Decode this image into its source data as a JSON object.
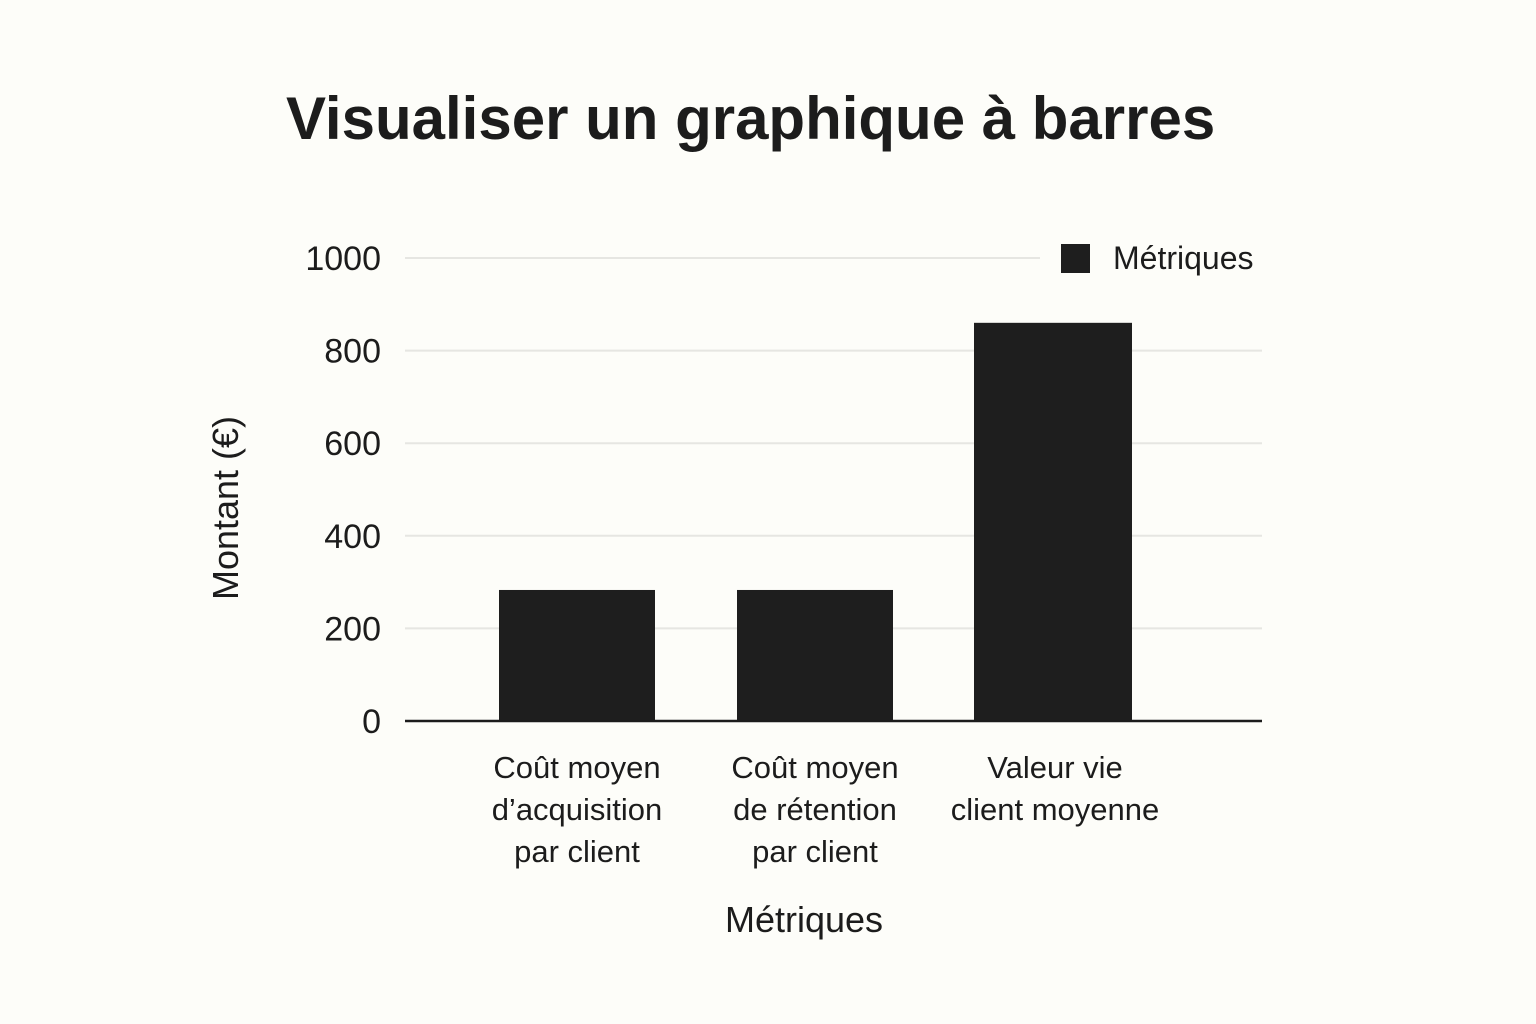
{
  "chart_data": {
    "type": "bar",
    "title": "Visualiser un graphique à barres",
    "xlabel": "Métriques",
    "ylabel": "Montant (€)",
    "ylim": [
      0,
      1000
    ],
    "yticks": [
      0,
      200,
      400,
      600,
      800,
      1000
    ],
    "grid": true,
    "legend": {
      "position": "top-right",
      "entries": [
        "Métriques"
      ]
    },
    "categories": [
      [
        "Coût moyen",
        "d’acquisition",
        "par client"
      ],
      [
        "Coût moyen",
        "de rétention",
        "par client"
      ],
      [
        "Valeur vie",
        "client moyenne"
      ]
    ],
    "series": [
      {
        "name": "Métriques",
        "values": [
          283,
          283,
          860
        ],
        "color": "#1e1e1e"
      }
    ]
  }
}
